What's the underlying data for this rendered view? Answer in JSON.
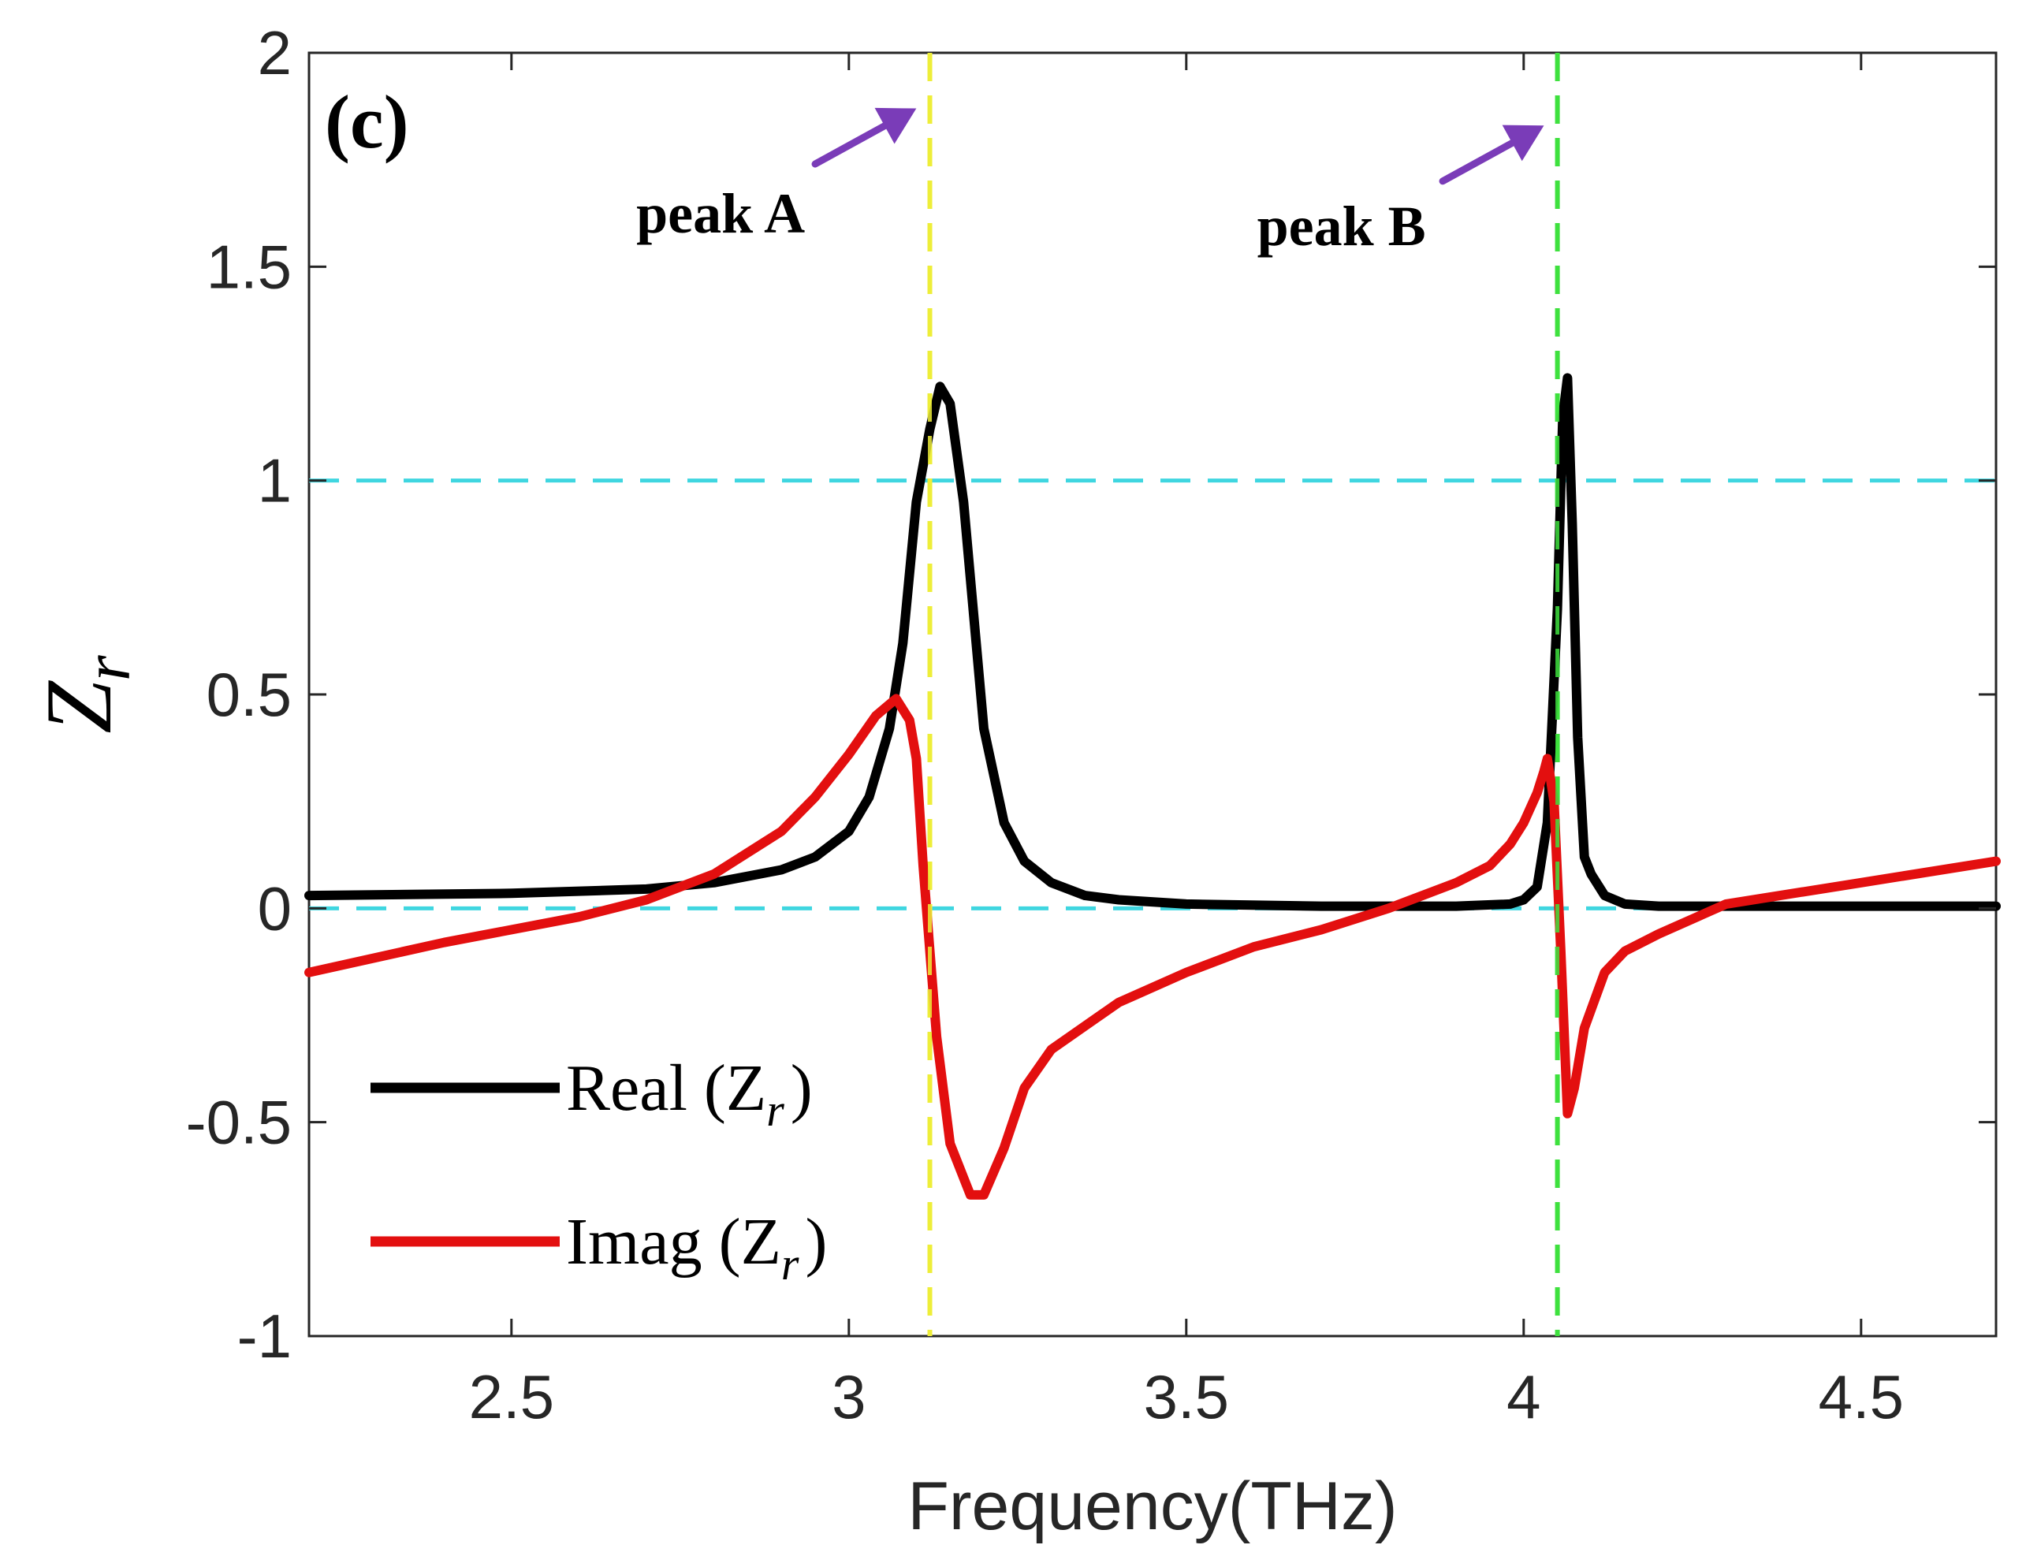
{
  "chart_data": {
    "type": "line",
    "panel_label": "(c)",
    "xlabel": "Frequency(THz)",
    "ylabel": {
      "main": "Z",
      "sub": "r"
    },
    "xlim": [
      2.2,
      4.7
    ],
    "ylim": [
      -1,
      2
    ],
    "xticks": [
      2.5,
      3,
      3.5,
      4,
      4.5
    ],
    "xtick_labels": [
      "2.5",
      "3",
      "3.5",
      "4",
      "4.5"
    ],
    "yticks": [
      -1,
      -0.5,
      0,
      0.5,
      1,
      1.5,
      2
    ],
    "ytick_labels": [
      "-1",
      "-0.5",
      "0",
      "0.5",
      "1",
      "1.5",
      "2"
    ],
    "grid": false,
    "reference_lines": {
      "horizontal": [
        {
          "y": 1,
          "color": "#3fd6e0",
          "style": "dashed"
        },
        {
          "y": 0,
          "color": "#3fd6e0",
          "style": "dashed"
        }
      ],
      "vertical": [
        {
          "x": 3.12,
          "color": "#eded3a",
          "style": "dashed"
        },
        {
          "x": 4.05,
          "color": "#3ee03e",
          "style": "dashed"
        }
      ]
    },
    "annotations": [
      {
        "text": "peak A",
        "x": 2.81,
        "y": 1.58,
        "arrow_from": [
          2.95,
          1.74
        ],
        "arrow_to": [
          3.1,
          1.87
        ]
      },
      {
        "text": "peak B",
        "x": 3.73,
        "y": 1.55,
        "arrow_from": [
          3.88,
          1.7
        ],
        "arrow_to": [
          4.03,
          1.83
        ]
      }
    ],
    "annotation_color": "#7a3cb8",
    "legend": {
      "position": "bottom-left",
      "entries": [
        {
          "label": "Real (Z",
          "sub": "r",
          "suffix": ")",
          "series": "Real"
        },
        {
          "label": "Imag (Z",
          "sub": "r",
          "suffix": ")",
          "series": "Imag"
        }
      ]
    },
    "series": [
      {
        "name": "Real (Zr)",
        "color": "#000000",
        "x": [
          2.2,
          2.5,
          2.7,
          2.8,
          2.9,
          2.95,
          3.0,
          3.03,
          3.06,
          3.08,
          3.1,
          3.12,
          3.135,
          3.15,
          3.17,
          3.2,
          3.23,
          3.26,
          3.3,
          3.35,
          3.4,
          3.5,
          3.7,
          3.9,
          3.98,
          4.0,
          4.02,
          4.035,
          4.05,
          4.058,
          4.065,
          4.072,
          4.08,
          4.09,
          4.1,
          4.12,
          4.15,
          4.2,
          4.4,
          4.7
        ],
        "y": [
          0.03,
          0.035,
          0.045,
          0.06,
          0.09,
          0.12,
          0.18,
          0.26,
          0.42,
          0.62,
          0.95,
          1.12,
          1.22,
          1.18,
          0.95,
          0.42,
          0.2,
          0.11,
          0.06,
          0.03,
          0.02,
          0.01,
          0.005,
          0.005,
          0.01,
          0.02,
          0.05,
          0.2,
          0.7,
          1.15,
          1.24,
          0.9,
          0.4,
          0.12,
          0.08,
          0.03,
          0.01,
          0.005,
          0.005,
          0.005
        ]
      },
      {
        "name": "Imag (Zr)",
        "color": "#e30f0f",
        "x": [
          2.2,
          2.4,
          2.6,
          2.7,
          2.8,
          2.9,
          2.95,
          3.0,
          3.04,
          3.07,
          3.09,
          3.1,
          3.11,
          3.13,
          3.15,
          3.18,
          3.2,
          3.23,
          3.26,
          3.3,
          3.4,
          3.5,
          3.6,
          3.7,
          3.8,
          3.9,
          3.95,
          3.98,
          4.0,
          4.02,
          4.03,
          4.035,
          4.045,
          4.055,
          4.065,
          4.075,
          4.09,
          4.12,
          4.15,
          4.2,
          4.3,
          4.5,
          4.7
        ],
        "y": [
          -0.15,
          -0.08,
          -0.02,
          0.02,
          0.08,
          0.18,
          0.26,
          0.36,
          0.45,
          0.49,
          0.44,
          0.35,
          0.1,
          -0.3,
          -0.55,
          -0.67,
          -0.67,
          -0.56,
          -0.42,
          -0.33,
          -0.22,
          -0.15,
          -0.09,
          -0.05,
          0.0,
          0.06,
          0.1,
          0.15,
          0.2,
          0.27,
          0.32,
          0.35,
          0.25,
          -0.1,
          -0.48,
          -0.42,
          -0.28,
          -0.15,
          -0.1,
          -0.06,
          0.01,
          0.06,
          0.11
        ]
      }
    ]
  }
}
